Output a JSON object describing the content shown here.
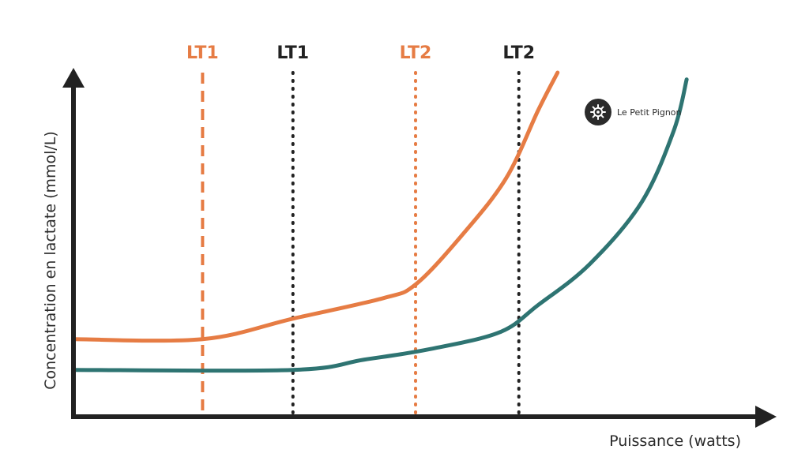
{
  "chart_data": {
    "type": "line",
    "title": "",
    "xlabel": "Puissance (watts)",
    "ylabel": "Concentration en lactate (mmol/L)",
    "xlim": [
      0,
      100
    ],
    "ylim": [
      0,
      100
    ],
    "grid": false,
    "axis_ticks": false,
    "series": [
      {
        "color": "#e67c44",
        "points": [
          [
            0,
            22
          ],
          [
            20,
            22
          ],
          [
            34,
            28
          ],
          [
            48,
            34
          ],
          [
            53,
            38
          ],
          [
            60,
            52
          ],
          [
            67,
            69
          ],
          [
            72,
            89
          ],
          [
            75,
            100
          ]
        ]
      },
      {
        "color": "#2e7472",
        "points": [
          [
            0,
            13
          ],
          [
            34,
            13
          ],
          [
            45,
            16
          ],
          [
            55,
            19
          ],
          [
            66,
            24
          ],
          [
            72,
            32
          ],
          [
            80,
            44
          ],
          [
            88,
            62
          ],
          [
            93,
            83
          ],
          [
            95,
            98
          ]
        ]
      }
    ],
    "thresholds": [
      {
        "label": "LT1",
        "x": 20,
        "color": "#e67c44",
        "style": "dashed"
      },
      {
        "label": "LT1",
        "x": 34,
        "color": "#222222",
        "style": "dotted"
      },
      {
        "label": "LT2",
        "x": 53,
        "color": "#e67c44",
        "style": "dotted"
      },
      {
        "label": "LT2",
        "x": 69,
        "color": "#222222",
        "style": "dotted"
      }
    ]
  },
  "watermark": {
    "text": "Le Petit Pignon",
    "icon": "gear-icon"
  }
}
